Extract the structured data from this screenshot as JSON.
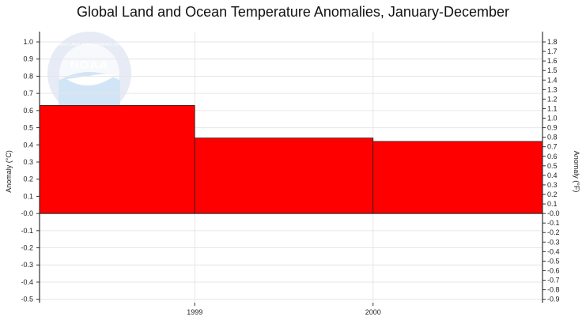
{
  "chart_data": {
    "type": "bar",
    "title": "Global Land and Ocean Temperature Anomalies, January-December",
    "ylabel_left": "Anomaly (°C)",
    "ylabel_right": "Anomaly (°F)",
    "x_ticks": [
      {
        "label": "1999",
        "value": 1999
      },
      {
        "label": "2000",
        "value": 2000
      }
    ],
    "xlim": [
      1998.13,
      2000.95
    ],
    "bars": [
      {
        "x_start": 1998.13,
        "x_end": 1999.0,
        "value": 0.63
      },
      {
        "x_start": 1999.0,
        "x_end": 2000.0,
        "value": 0.44
      },
      {
        "x_start": 2000.0,
        "x_end": 2000.95,
        "value": 0.42
      }
    ],
    "ylim_c": [
      -0.52,
      1.06
    ],
    "yticks_c": [
      1.0,
      0.9,
      0.8,
      0.7,
      0.6,
      0.5,
      0.4,
      0.3,
      0.2,
      0.1,
      0.0,
      -0.1,
      -0.2,
      -0.3,
      -0.4,
      -0.5
    ],
    "yticks_c_labels": [
      "1.0",
      "0.9",
      "0.8",
      "0.7",
      "0.6",
      "0.5",
      "0.4",
      "0.3",
      "0.2",
      "0.1",
      "-0.0",
      "-0.1",
      "-0.2",
      "-0.3",
      "-0.4",
      "-0.5"
    ],
    "yticks_f": [
      1.8,
      1.7,
      1.6,
      1.5,
      1.4,
      1.3,
      1.2,
      1.1,
      1.0,
      0.9,
      0.8,
      0.7,
      0.6,
      0.5,
      0.4,
      0.3,
      0.2,
      0.1,
      0.0,
      -0.1,
      -0.2,
      -0.3,
      -0.4,
      -0.5,
      -0.6,
      -0.7,
      -0.8,
      -0.9
    ],
    "yticks_f_labels": [
      "1.8",
      "1.7",
      "1.6",
      "1.5",
      "1.4",
      "1.3",
      "1.2",
      "1.1",
      "1.0",
      "0.9",
      "0.8",
      "0.7",
      "0.6",
      "0.5",
      "0.4",
      "0.3",
      "0.2",
      "0.1",
      "-0.0",
      "-0.1",
      "-0.2",
      "-0.3",
      "-0.4",
      "-0.5",
      "-0.6",
      "-0.7",
      "-0.8",
      "-0.9"
    ],
    "bar_color": "#ff0000",
    "grid": true,
    "legend": "none"
  },
  "watermark": {
    "logo_text": "NOAA",
    "ring_text": "NATIONAL OCEANIC AND ATMOSPHERIC ADMINISTRATION"
  }
}
